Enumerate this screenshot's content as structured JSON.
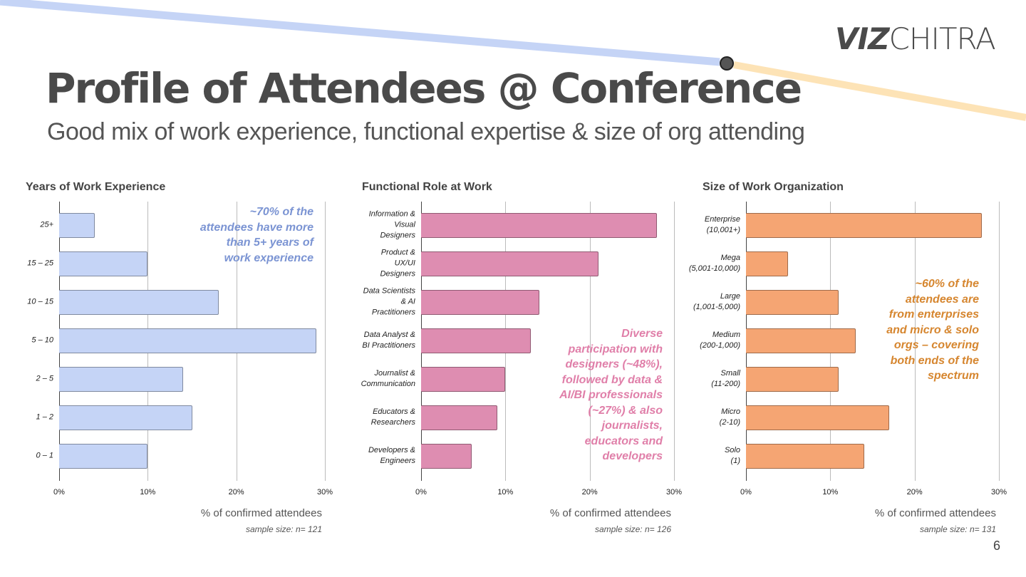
{
  "logo": {
    "bold": "VIZ",
    "light": "CHITRA"
  },
  "title": "Profile of Attendees @ Conference",
  "subtitle": "Good mix of work experience, functional expertise & size of org attending",
  "page_number": "6",
  "colors": {
    "blue": "#c5d4f6",
    "pink": "#de8db1",
    "orange": "#f5a573",
    "blue_text": "#7b94d3",
    "pink_text": "#e07fa9",
    "orange_text": "#d6862f"
  },
  "chart_data": [
    {
      "type": "bar",
      "orientation": "horizontal",
      "title": "Years of Work Experience",
      "categories": [
        "25+",
        "15 – 25",
        "10 – 15",
        "5 – 10",
        "2 – 5",
        "1 – 2",
        "0 – 1"
      ],
      "values": [
        4,
        10,
        18,
        29,
        14,
        15,
        10
      ],
      "xlim": [
        0,
        30
      ],
      "xticks": [
        "0%",
        "10%",
        "20%",
        "30%"
      ],
      "xlabel": "% of confirmed attendees",
      "sample": "sample size: n= 121",
      "annotation": "~70% of the\nattendees have more\nthan 5+ years of\nwork experience",
      "color": "#c5d4f6"
    },
    {
      "type": "bar",
      "orientation": "horizontal",
      "title": "Functional Role at Work",
      "categories": [
        "Information &\nVisual\nDesigners",
        "Product &\nUX/UI\nDesigners",
        "Data Scientists\n& AI\nPractitioners",
        "Data Analyst &\nBI Practitioners",
        "Journalist &\nCommunication",
        "Educators &\nResearchers",
        "Developers &\nEngineers"
      ],
      "values": [
        28,
        21,
        14,
        13,
        10,
        9,
        6
      ],
      "xlim": [
        0,
        30
      ],
      "xticks": [
        "0%",
        "10%",
        "20%",
        "30%"
      ],
      "xlabel": "% of confirmed attendees",
      "sample": "sample size: n= 126",
      "annotation": "Diverse\nparticipation with\ndesigners (~48%),\nfollowed by data &\nAI/BI professionals\n(~27%) & also\njournalists,\neducators and\ndevelopers",
      "color": "#de8db1"
    },
    {
      "type": "bar",
      "orientation": "horizontal",
      "title": "Size of Work Organization",
      "categories": [
        "Enterprise\n(10,001+)",
        "Mega\n(5,001-10,000)",
        "Large\n(1,001-5,000)",
        "Medium\n(200-1,000)",
        "Small\n(11-200)",
        "Micro\n(2-10)",
        "Solo\n(1)"
      ],
      "values": [
        28,
        5,
        11,
        13,
        11,
        17,
        14
      ],
      "xlim": [
        0,
        30
      ],
      "xticks": [
        "0%",
        "10%",
        "20%",
        "30%"
      ],
      "xlabel": "% of confirmed attendees",
      "sample": "sample size: n= 131",
      "annotation": "~60% of the\nattendees are\nfrom enterprises\nand micro & solo\norgs – covering\nboth ends of the\nspectrum",
      "color": "#f5a573"
    }
  ]
}
